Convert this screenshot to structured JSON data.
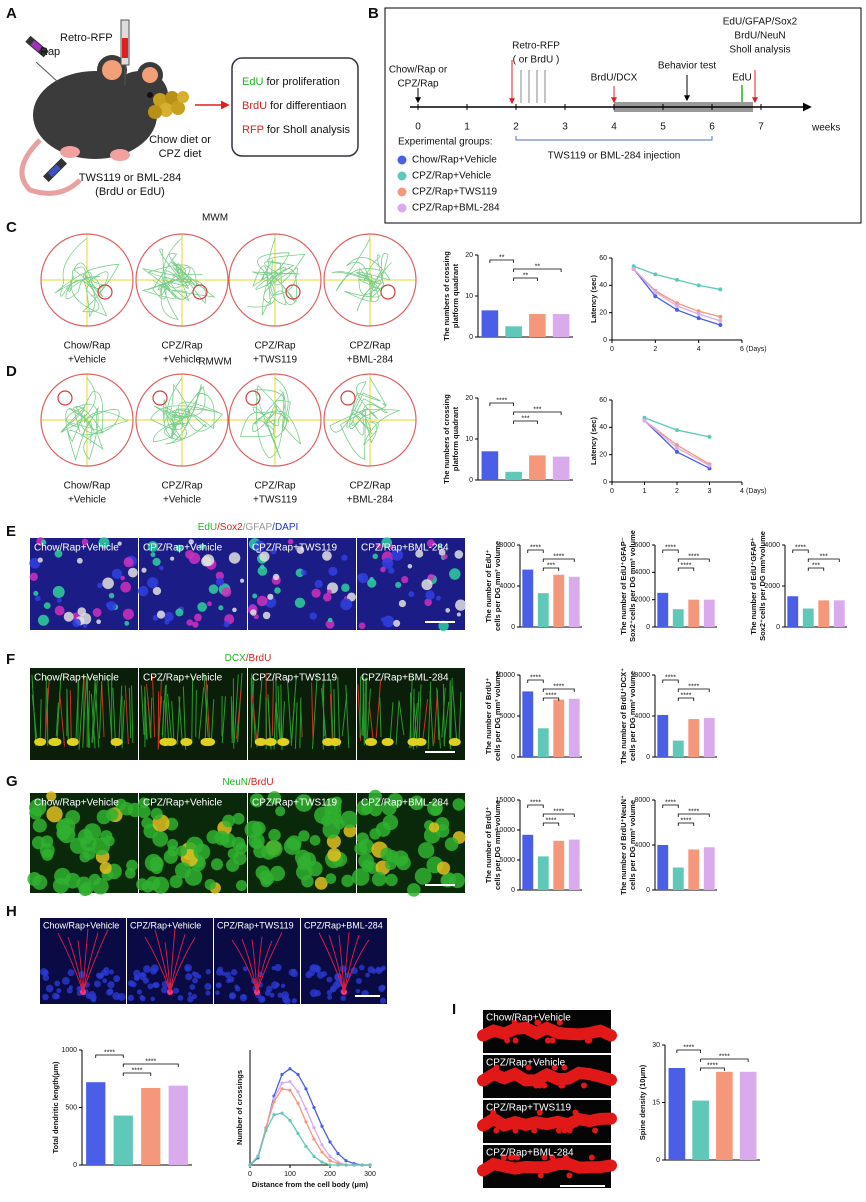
{
  "panel_a": {
    "label": "A",
    "rap": "Rap",
    "injection": "Retro-RFP",
    "diet": [
      "Chow diet or",
      "CPZ diet"
    ],
    "treatment": [
      "TWS119 or BML-284",
      "(BrdU or EdU)"
    ],
    "purposes": [
      {
        "marker": "EdU",
        "color": "#1fb51f",
        "text": " for proliferation"
      },
      {
        "marker": "BrdU",
        "color": "#e02020",
        "text": " for differentiaon"
      },
      {
        "marker": "RFP",
        "color": "#e02020",
        "text": " for Sholl analysis"
      }
    ]
  },
  "panel_b": {
    "label": "B",
    "weeks": [
      0,
      1,
      2,
      3,
      4,
      5,
      6,
      7
    ],
    "unit": "weeks",
    "start": [
      "Chow/Rap or",
      "CPZ/Rap"
    ],
    "retro": "Retro-RFP",
    "retro_alt": "( or BrdU )",
    "brdu_dcx": "BrdU/DCX",
    "behavior": "Behavior test",
    "end_labels": [
      {
        "text": "EdU/GFAP/Sox2",
        "color": "#1fb51f"
      },
      {
        "text": "BrdU/NeuN",
        "color": "#888888"
      },
      {
        "text": "Sholl analysis",
        "color": "#e02020"
      }
    ],
    "edu": "EdU",
    "injection": "TWS119 or BML-284 injection",
    "groups_title": "Experimental groups:",
    "groups": [
      {
        "name": "Chow/Rap+Vehicle",
        "color": "#4a5ee8"
      },
      {
        "name": "CPZ/Rap+Vehicle",
        "color": "#5fc8b8"
      },
      {
        "name": "CPZ/Rap+TWS119",
        "color": "#f5977a"
      },
      {
        "name": "CPZ/Rap+BML-284",
        "color": "#d9aaec"
      }
    ]
  },
  "panel_c": {
    "label": "C",
    "title": "MWM",
    "trials": [
      [
        "Chow/Rap",
        "+Vehicle"
      ],
      [
        "CPZ/Rap",
        "+Vehicle"
      ],
      [
        "CPZ/Rap",
        "+TWS119"
      ],
      [
        "CPZ/Rap",
        "+BML-284"
      ]
    ],
    "bar": {
      "type": "bar",
      "ylabel": [
        "The numbers of crossing",
        "platform quadrant"
      ],
      "ylim": [
        0,
        20
      ],
      "yticks": [
        0,
        10,
        20
      ],
      "values": [
        6.5,
        2.6,
        5.6,
        5.6
      ],
      "sig": [
        {
          "from": 0,
          "to": 1,
          "label": "**"
        },
        {
          "from": 1,
          "to": 3,
          "label": "**"
        },
        {
          "from": 1,
          "to": 2,
          "label": "**"
        }
      ]
    },
    "latency": {
      "type": "line",
      "ylabel": "Latency (sec)",
      "xlabel": "(Days)",
      "xlim": [
        0,
        6
      ],
      "xticks": [
        0,
        2,
        4,
        6
      ],
      "ylim": [
        0,
        60
      ],
      "yticks": [
        0,
        20,
        40,
        60
      ],
      "x": [
        1,
        2,
        3,
        4,
        5
      ],
      "series": [
        {
          "color": "#4a5ee8",
          "values": [
            52,
            32,
            22,
            16,
            11
          ]
        },
        {
          "color": "#5fc8b8",
          "values": [
            54,
            48,
            44,
            40,
            37
          ]
        },
        {
          "color": "#f5977a",
          "values": [
            52,
            36,
            27,
            21,
            17
          ]
        },
        {
          "color": "#d9aaec",
          "values": [
            52,
            35,
            25,
            19,
            14
          ]
        }
      ]
    }
  },
  "panel_d": {
    "label": "D",
    "title": "RMWM",
    "trials": [
      [
        "Chow/Rap",
        "+Vehicle"
      ],
      [
        "CPZ/Rap",
        "+Vehicle"
      ],
      [
        "CPZ/Rap",
        "+TWS119"
      ],
      [
        "CPZ/Rap",
        "+BML-284"
      ]
    ],
    "bar": {
      "type": "bar",
      "ylabel": [
        "The numbers of crossing",
        "platform quadrant"
      ],
      "ylim": [
        0,
        20
      ],
      "yticks": [
        0,
        10,
        20
      ],
      "values": [
        7,
        2,
        6,
        5.7
      ],
      "sig": [
        {
          "from": 0,
          "to": 1,
          "label": "****"
        },
        {
          "from": 1,
          "to": 3,
          "label": "***"
        },
        {
          "from": 1,
          "to": 2,
          "label": "***"
        }
      ]
    },
    "latency": {
      "type": "line",
      "ylabel": "Latency (sec)",
      "xlabel": "(Days)",
      "xlim": [
        0,
        4
      ],
      "xticks": [
        0,
        1,
        2,
        3,
        4
      ],
      "ylim": [
        0,
        60
      ],
      "yticks": [
        0,
        20,
        40,
        60
      ],
      "x": [
        1,
        2,
        3
      ],
      "series": [
        {
          "color": "#4a5ee8",
          "values": [
            45,
            22,
            10
          ]
        },
        {
          "color": "#5fc8b8",
          "values": [
            47,
            38,
            33
          ]
        },
        {
          "color": "#f5977a",
          "values": [
            45,
            27,
            13
          ]
        },
        {
          "color": "#d9aaec",
          "values": [
            45,
            25,
            12
          ]
        }
      ]
    }
  },
  "panel_e": {
    "label": "E",
    "stain": [
      {
        "text": "EdU",
        "color": "#1fb51f"
      },
      {
        "text": "/Sox2",
        "color": "#e02020"
      },
      {
        "text": "/GFAP",
        "color": "#999999"
      },
      {
        "text": "/DAPI",
        "color": "#2030c0"
      }
    ],
    "images": [
      "Chow/Rap+Vehicle",
      "CPZ/Rap+Vehicle",
      "CPZ/Rap+TWS119",
      "CPZ/Rap+BML-284"
    ],
    "charts": [
      {
        "type": "bar",
        "ylabel": [
          "The number of EdU⁺",
          "cells per DG mm³ volume"
        ],
        "ylim": [
          0,
          8000
        ],
        "yticks": [
          0,
          4000,
          8000
        ],
        "values": [
          5600,
          3300,
          5100,
          4900
        ],
        "sig": [
          {
            "from": 0,
            "to": 1,
            "label": "****"
          },
          {
            "from": 1,
            "to": 3,
            "label": "****"
          },
          {
            "from": 1,
            "to": 2,
            "label": "***"
          }
        ]
      },
      {
        "type": "bar",
        "ylabel": [
          "The number of EdU⁺GFAP⁻",
          "Sox2⁺cells per DG mm³ volume"
        ],
        "ylim": [
          0,
          6000
        ],
        "yticks": [
          0,
          2000,
          4000,
          6000
        ],
        "values": [
          2500,
          1300,
          2000,
          2000
        ],
        "sig": [
          {
            "from": 0,
            "to": 1,
            "label": "****"
          },
          {
            "from": 1,
            "to": 3,
            "label": "****"
          },
          {
            "from": 1,
            "to": 2,
            "label": "****"
          }
        ]
      },
      {
        "type": "bar",
        "ylabel": [
          "The number of EdU⁺GFAP⁺",
          "Sox2⁺cells per DG mm³volume"
        ],
        "ylim": [
          0,
          4000
        ],
        "yticks": [
          0,
          2000,
          4000
        ],
        "values": [
          1500,
          900,
          1300,
          1300
        ],
        "sig": [
          {
            "from": 0,
            "to": 1,
            "label": "****"
          },
          {
            "from": 1,
            "to": 3,
            "label": "***"
          },
          {
            "from": 1,
            "to": 2,
            "label": "***"
          }
        ]
      }
    ]
  },
  "panel_f": {
    "label": "F",
    "stain": [
      {
        "text": "DCX",
        "color": "#1fb51f"
      },
      {
        "text": "/BrdU",
        "color": "#e02020"
      }
    ],
    "images": [
      "Chow/Rap+Vehicle",
      "CPZ/Rap+Vehicle",
      "CPZ/Rap+TWS119",
      "CPZ/Rap+BML-284"
    ],
    "charts": [
      {
        "type": "bar",
        "ylabel": [
          "The number of BrdU⁺",
          "cells per DG mm³ volume"
        ],
        "ylim": [
          0,
          10000
        ],
        "yticks": [
          0,
          5000,
          10000
        ],
        "values": [
          8000,
          3500,
          7000,
          7100
        ],
        "sig": [
          {
            "from": 0,
            "to": 1,
            "label": "****"
          },
          {
            "from": 1,
            "to": 3,
            "label": "****"
          },
          {
            "from": 1,
            "to": 2,
            "label": "****"
          }
        ]
      },
      {
        "type": "bar",
        "ylabel": [
          "The number of BrdU⁺DCX⁺",
          "cells per DG mm³ volume"
        ],
        "ylim": [
          0,
          8000
        ],
        "yticks": [
          0,
          4000,
          8000
        ],
        "values": [
          4100,
          1600,
          3700,
          3800
        ],
        "sig": [
          {
            "from": 0,
            "to": 1,
            "label": "****"
          },
          {
            "from": 1,
            "to": 3,
            "label": "****"
          },
          {
            "from": 1,
            "to": 2,
            "label": "****"
          }
        ]
      }
    ]
  },
  "panel_g": {
    "label": "G",
    "stain": [
      {
        "text": "NeuN",
        "color": "#1fb51f"
      },
      {
        "text": "/BrdU",
        "color": "#e02020"
      }
    ],
    "images": [
      "Chow/Rap+Vehicle",
      "CPZ/Rap+Vehicle",
      "CPZ/Rap+TWS119",
      "CPZ/Rap+BML-284"
    ],
    "charts": [
      {
        "type": "bar",
        "ylabel": [
          "The number of BrdU⁺",
          "cells per DG mm³ volume"
        ],
        "ylim": [
          0,
          15000
        ],
        "yticks": [
          0,
          5000,
          10000,
          15000
        ],
        "values": [
          9200,
          5600,
          8200,
          8400
        ],
        "sig": [
          {
            "from": 0,
            "to": 1,
            "label": "****"
          },
          {
            "from": 1,
            "to": 3,
            "label": "****"
          },
          {
            "from": 1,
            "to": 2,
            "label": "****"
          }
        ]
      },
      {
        "type": "bar",
        "ylabel": [
          "The number of BrdU⁺NeuN⁺",
          "cells per DG mm³ volume"
        ],
        "ylim": [
          0,
          8000
        ],
        "yticks": [
          0,
          4000,
          8000
        ],
        "values": [
          4000,
          2000,
          3600,
          3800
        ],
        "sig": [
          {
            "from": 0,
            "to": 1,
            "label": "****"
          },
          {
            "from": 1,
            "to": 3,
            "label": "****"
          },
          {
            "from": 1,
            "to": 2,
            "label": "****"
          }
        ]
      }
    ]
  },
  "panel_h": {
    "label": "H",
    "images": [
      "Chow/Rap+Vehicle",
      "CPZ/Rap+Vehicle",
      "CPZ/Rap+TWS119",
      "CPZ/Rap+BML-284"
    ],
    "bar": {
      "type": "bar",
      "ylabel": "Total dendritic length(μm)",
      "ylim": [
        0,
        1000
      ],
      "yticks": [
        0,
        500,
        1000
      ],
      "values": [
        720,
        430,
        670,
        690
      ],
      "sig": [
        {
          "from": 0,
          "to": 1,
          "label": "****"
        },
        {
          "from": 1,
          "to": 3,
          "label": "****"
        },
        {
          "from": 1,
          "to": 2,
          "label": "****"
        }
      ]
    },
    "sholl": {
      "type": "line",
      "ylabel": "Number of crossings",
      "xlabel": "Distance from the cell body (μm)",
      "xlim": [
        0,
        300
      ],
      "xticks": [
        0,
        100,
        200,
        300
      ],
      "ylim": [
        0,
        8
      ],
      "x": [
        0,
        20,
        40,
        60,
        80,
        100,
        120,
        140,
        160,
        180,
        200,
        220,
        240,
        260,
        280,
        300
      ],
      "series": [
        {
          "color": "#4a5ee8",
          "values": [
            0,
            0.5,
            2.5,
            4.8,
            6.3,
            6.7,
            6.3,
            5.3,
            4,
            2.7,
            1.6,
            0.8,
            0.3,
            0.1,
            0,
            0
          ]
        },
        {
          "color": "#d9aaec",
          "values": [
            0,
            0.6,
            2.6,
            4.6,
            5.7,
            5.8,
            5.1,
            3.9,
            2.6,
            1.4,
            0.6,
            0.2,
            0,
            0,
            0,
            0
          ]
        },
        {
          "color": "#f5977a",
          "values": [
            0,
            0.6,
            2.6,
            4.4,
            5.3,
            5.2,
            4.3,
            3,
            1.8,
            0.9,
            0.3,
            0.1,
            0,
            0,
            0,
            0
          ]
        },
        {
          "color": "#5fc8b8",
          "values": [
            0,
            0.6,
            2.4,
            3.5,
            3.6,
            3.1,
            2.2,
            1.3,
            0.6,
            0.2,
            0,
            0,
            0,
            0,
            0,
            0
          ]
        }
      ]
    }
  },
  "panel_i": {
    "label": "I",
    "images": [
      "Chow/Rap+Vehicle",
      "CPZ/Rap+Vehicle",
      "CPZ/Rap+TWS119",
      "CPZ/Rap+BML-284"
    ],
    "bar": {
      "type": "bar",
      "ylabel": "Spine density (10μm)",
      "ylim": [
        0,
        30
      ],
      "yticks": [
        0,
        15,
        30
      ],
      "values": [
        24,
        15.5,
        23,
        23
      ],
      "sig": [
        {
          "from": 0,
          "to": 1,
          "label": "****"
        },
        {
          "from": 1,
          "to": 3,
          "label": "****"
        },
        {
          "from": 1,
          "to": 2,
          "label": "****"
        }
      ]
    }
  }
}
